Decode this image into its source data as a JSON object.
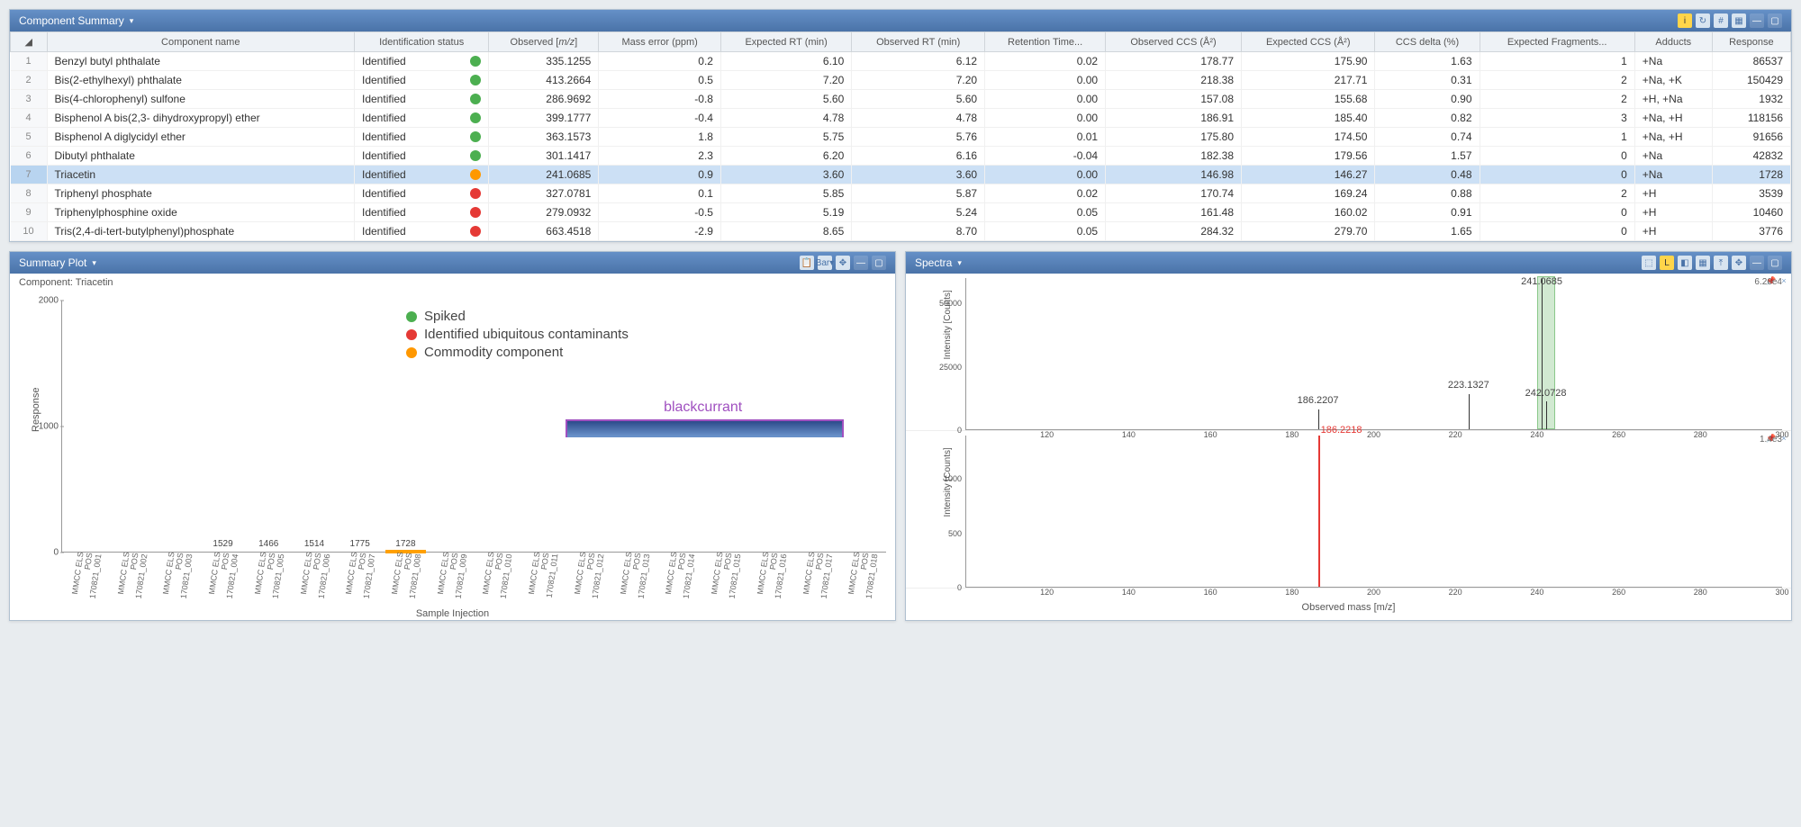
{
  "component_summary": {
    "title": "Component Summary",
    "toolbar_icons": [
      "info",
      "refresh",
      "hash",
      "grid",
      "min",
      "max"
    ],
    "columns": [
      "",
      "Component name",
      "Identification status",
      "Observed [m/z]",
      "Mass error (ppm)",
      "Expected RT (min)",
      "Observed RT (min)",
      "Retention Time...",
      "Observed CCS (Å²)",
      "Expected CCS (Å²)",
      "CCS delta (%)",
      "Expected Fragments...",
      "Adducts",
      "Response"
    ],
    "selected_row_index": 6,
    "rows": [
      {
        "n": 1,
        "name": "Benzyl butyl phthalate",
        "status": "Identified",
        "dot": "green",
        "mz": "335.1255",
        "merr": "0.2",
        "ert": "6.10",
        "ort": "6.12",
        "rtd": "0.02",
        "occs": "178.77",
        "eccs": "175.90",
        "ccsd": "1.63",
        "frag": "1",
        "add": "+Na",
        "resp": "86537"
      },
      {
        "n": 2,
        "name": "Bis(2-ethylhexyl) phthalate",
        "status": "Identified",
        "dot": "green",
        "mz": "413.2664",
        "merr": "0.5",
        "ert": "7.20",
        "ort": "7.20",
        "rtd": "0.00",
        "occs": "218.38",
        "eccs": "217.71",
        "ccsd": "0.31",
        "frag": "2",
        "add": "+Na, +K",
        "resp": "150429"
      },
      {
        "n": 3,
        "name": "Bis(4-chlorophenyl) sulfone",
        "status": "Identified",
        "dot": "green",
        "mz": "286.9692",
        "merr": "-0.8",
        "ert": "5.60",
        "ort": "5.60",
        "rtd": "0.00",
        "occs": "157.08",
        "eccs": "155.68",
        "ccsd": "0.90",
        "frag": "2",
        "add": "+H, +Na",
        "resp": "1932"
      },
      {
        "n": 4,
        "name": "Bisphenol A bis(2,3- dihydroxypropyl) ether",
        "status": "Identified",
        "dot": "green",
        "mz": "399.1777",
        "merr": "-0.4",
        "ert": "4.78",
        "ort": "4.78",
        "rtd": "0.00",
        "occs": "186.91",
        "eccs": "185.40",
        "ccsd": "0.82",
        "frag": "3",
        "add": "+Na, +H",
        "resp": "118156"
      },
      {
        "n": 5,
        "name": "Bisphenol A diglycidyl ether",
        "status": "Identified",
        "dot": "green",
        "mz": "363.1573",
        "merr": "1.8",
        "ert": "5.75",
        "ort": "5.76",
        "rtd": "0.01",
        "occs": "175.80",
        "eccs": "174.50",
        "ccsd": "0.74",
        "frag": "1",
        "add": "+Na, +H",
        "resp": "91656"
      },
      {
        "n": 6,
        "name": "Dibutyl phthalate",
        "status": "Identified",
        "dot": "green",
        "mz": "301.1417",
        "merr": "2.3",
        "ert": "6.20",
        "ort": "6.16",
        "rtd": "-0.04",
        "occs": "182.38",
        "eccs": "179.56",
        "ccsd": "1.57",
        "frag": "0",
        "add": "+Na",
        "resp": "42832"
      },
      {
        "n": 7,
        "name": "Triacetin",
        "status": "Identified",
        "dot": "orange",
        "mz": "241.0685",
        "merr": "0.9",
        "ert": "3.60",
        "ort": "3.60",
        "rtd": "0.00",
        "occs": "146.98",
        "eccs": "146.27",
        "ccsd": "0.48",
        "frag": "0",
        "add": "+Na",
        "resp": "1728"
      },
      {
        "n": 8,
        "name": "Triphenyl phosphate",
        "status": "Identified",
        "dot": "red",
        "mz": "327.0781",
        "merr": "0.1",
        "ert": "5.85",
        "ort": "5.87",
        "rtd": "0.02",
        "occs": "170.74",
        "eccs": "169.24",
        "ccsd": "0.88",
        "frag": "2",
        "add": "+H",
        "resp": "3539"
      },
      {
        "n": 9,
        "name": "Triphenylphosphine oxide",
        "status": "Identified",
        "dot": "red",
        "mz": "279.0932",
        "merr": "-0.5",
        "ert": "5.19",
        "ort": "5.24",
        "rtd": "0.05",
        "occs": "161.48",
        "eccs": "160.02",
        "ccsd": "0.91",
        "frag": "0",
        "add": "+H",
        "resp": "10460"
      },
      {
        "n": 10,
        "name": "Tris(2,4-di-tert-butylphenyl)phosphate",
        "status": "Identified",
        "dot": "red",
        "mz": "663.4518",
        "merr": "-2.9",
        "ert": "8.65",
        "ort": "8.70",
        "rtd": "0.05",
        "occs": "284.32",
        "eccs": "279.70",
        "ccsd": "1.65",
        "frag": "0",
        "add": "+H",
        "resp": "3776"
      }
    ]
  },
  "summary_plot": {
    "title": "Summary Plot",
    "subtitle": "Component: Triacetin",
    "chart": {
      "type": "bar",
      "y_label": "Response",
      "x_label": "Sample Injection",
      "y_max": 2000,
      "y_ticks": [
        0,
        1000,
        2000
      ],
      "bar_color_top": "#2c4a8a",
      "bar_color_bottom": "#6890c8",
      "highlight_outline": "#ffa000",
      "background": "#ffffff",
      "axis_color": "#999999",
      "categories": [
        "MMCC ELS POS 170821_001",
        "MMCC ELS POS 170821_002",
        "MMCC ELS POS 170821_003",
        "MMCC ELS POS 170821_004",
        "MMCC ELS POS 170821_005",
        "MMCC ELS POS 170821_006",
        "MMCC ELS POS 170821_007",
        "MMCC ELS POS 170821_008",
        "MMCC ELS POS 170821_009",
        "MMCC ELS POS 170821_010",
        "MMCC ELS POS 170821_011",
        "MMCC ELS POS 170821_012",
        "MMCC ELS POS 170821_013",
        "MMCC ELS POS 170821_014",
        "MMCC ELS POS 170821_015",
        "MMCC ELS POS 170821_016",
        "MMCC ELS POS 170821_017",
        "MMCC ELS POS 170821_018"
      ],
      "values": [
        0,
        0,
        0,
        1529,
        1466,
        1514,
        1775,
        1728,
        0,
        0,
        0,
        0,
        0,
        0,
        0,
        0,
        0,
        0
      ],
      "highlight_index": 7
    },
    "legend": [
      {
        "color": "#4caf50",
        "label": "Spiked"
      },
      {
        "color": "#e53935",
        "label": "Identified  ubiquitous contaminants"
      },
      {
        "color": "#ff9800",
        "label": "Commodity component"
      }
    ],
    "annotation": {
      "label": "blackcurrant",
      "color": "#a050c0",
      "start_index": 11,
      "end_index": 16
    },
    "toolbar": {
      "chart_type": "Bar"
    }
  },
  "spectra": {
    "title": "Spectra",
    "x_label": "Observed mass [m/z]",
    "x_min": 100,
    "x_max": 300,
    "x_ticks": [
      120,
      140,
      160,
      180,
      200,
      220,
      240,
      260,
      280,
      300
    ],
    "top": {
      "y_label": "Intensity [Counts]",
      "ylim": [
        0,
        60000
      ],
      "y_ticks": [
        0,
        25000,
        50000
      ],
      "corner": "6.26e4",
      "highlight_band": {
        "from": 240,
        "to": 244,
        "color": "rgba(140,200,140,0.4)"
      },
      "peak_color": "#333333",
      "peaks": [
        {
          "mz": 186.22,
          "intensity": 8000,
          "label": "186.2207"
        },
        {
          "mz": 223.13,
          "intensity": 14000,
          "label": "223.1327"
        },
        {
          "mz": 241.07,
          "intensity": 62600,
          "label": "241.0685",
          "label_top": true
        },
        {
          "mz": 242.07,
          "intensity": 11000,
          "label": "242.0728"
        }
      ]
    },
    "bottom": {
      "y_label": "Intensity [Counts]",
      "ylim": [
        0,
        1400
      ],
      "y_ticks": [
        0,
        500,
        1000
      ],
      "corner": "1.4e3",
      "peak_color": "#e53935",
      "peaks": [
        {
          "mz": 186.22,
          "intensity": 1400,
          "label": "186.2218",
          "red": true
        }
      ]
    }
  }
}
